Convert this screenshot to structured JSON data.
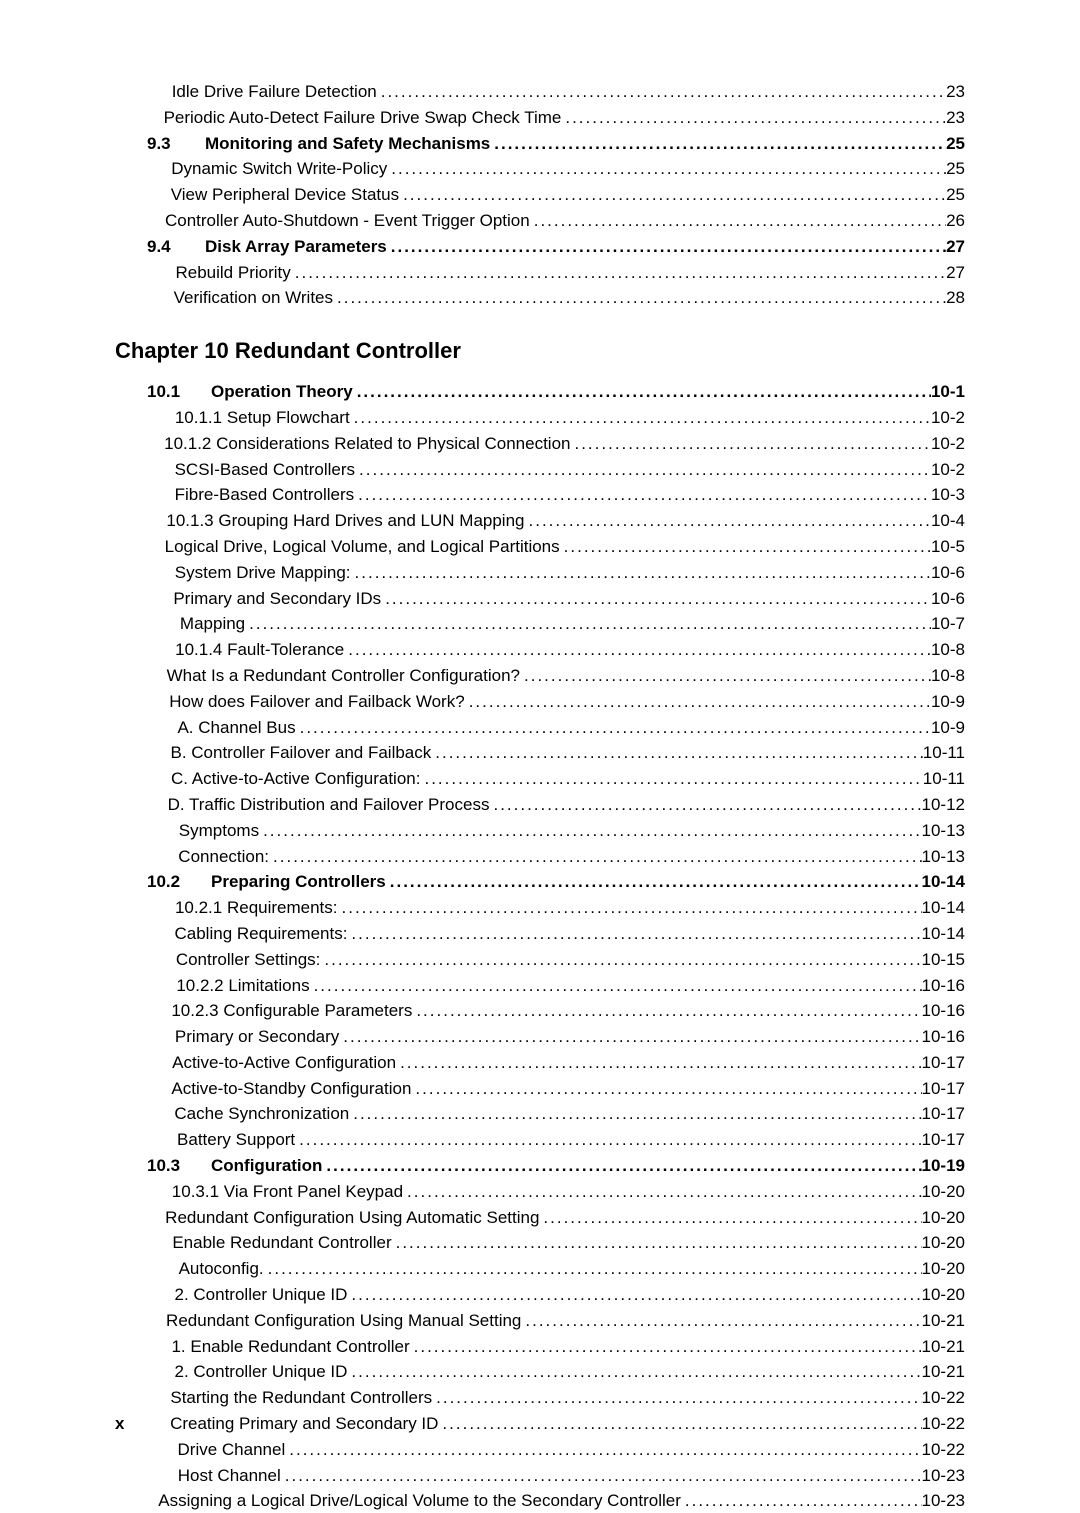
{
  "top_section": [
    {
      "num": "",
      "label": "Idle Drive Failure Detection",
      "page": "23",
      "bold": false,
      "indent": 1
    },
    {
      "num": "",
      "label": "Periodic Auto-Detect Failure Drive Swap Check Time",
      "page": "23",
      "bold": false,
      "indent": 1
    },
    {
      "num": "9.3",
      "label": "Monitoring and Safety Mechanisms",
      "page": "25",
      "bold": true,
      "indent": 0
    },
    {
      "num": "",
      "label": "Dynamic Switch Write-Policy",
      "page": "25",
      "bold": false,
      "indent": 1
    },
    {
      "num": "",
      "label": "View Peripheral Device Status",
      "page": "25",
      "bold": false,
      "indent": 1
    },
    {
      "num": "",
      "label": "Controller Auto-Shutdown - Event Trigger Option",
      "page": "26",
      "bold": false,
      "indent": 1
    },
    {
      "num": "9.4",
      "label": "Disk Array Parameters",
      "page": "27",
      "bold": true,
      "indent": 0
    },
    {
      "num": "",
      "label": "Rebuild Priority",
      "page": "27",
      "bold": false,
      "indent": 1
    },
    {
      "num": "",
      "label": "Verification on Writes",
      "page": "28",
      "bold": false,
      "indent": 1
    }
  ],
  "chapter_heading": "Chapter 10  Redundant Controller",
  "ch10_section": [
    {
      "num": "10.1",
      "label": "Operation Theory",
      "page": "10-1",
      "bold": true,
      "indent": 0
    },
    {
      "num": "",
      "label": "10.1.1  Setup Flowchart",
      "page": "10-2",
      "bold": false,
      "indent": 1
    },
    {
      "num": "",
      "label": "10.1.2  Considerations Related to Physical Connection",
      "page": "10-2",
      "bold": false,
      "indent": 1
    },
    {
      "num": "",
      "label": "SCSI-Based Controllers",
      "page": "10-2",
      "bold": false,
      "indent": 1
    },
    {
      "num": "",
      "label": "Fibre-Based Controllers",
      "page": "10-3",
      "bold": false,
      "indent": 1
    },
    {
      "num": "",
      "label": "10.1.3  Grouping Hard Drives and LUN Mapping",
      "page": "10-4",
      "bold": false,
      "indent": 1
    },
    {
      "num": "",
      "label": "Logical Drive, Logical Volume, and Logical Partitions",
      "page": "10-5",
      "bold": false,
      "indent": 1
    },
    {
      "num": "",
      "label": "System Drive Mapping:",
      "page": "10-6",
      "bold": false,
      "indent": 1
    },
    {
      "num": "",
      "label": "Primary and Secondary IDs",
      "page": "10-6",
      "bold": false,
      "indent": 1
    },
    {
      "num": "",
      "label": "Mapping",
      "page": "10-7",
      "bold": false,
      "indent": 1
    },
    {
      "num": "",
      "label": "10.1.4  Fault-Tolerance",
      "page": "10-8",
      "bold": false,
      "indent": 1
    },
    {
      "num": "",
      "label": "What Is a Redundant Controller Configuration?",
      "page": "10-8",
      "bold": false,
      "indent": 1
    },
    {
      "num": "",
      "label": "How does Failover and Failback Work?",
      "page": "10-9",
      "bold": false,
      "indent": 1
    },
    {
      "num": "",
      "label": "A.  Channel Bus",
      "page": "10-9",
      "bold": false,
      "indent": 1
    },
    {
      "num": "",
      "label": "B.  Controller Failover and Failback",
      "page": "10-11",
      "bold": false,
      "indent": 1
    },
    {
      "num": "",
      "label": "C.  Active-to-Active Configuration:",
      "page": "10-11",
      "bold": false,
      "indent": 1
    },
    {
      "num": "",
      "label": "D.  Traffic Distribution and Failover Process",
      "page": "10-12",
      "bold": false,
      "indent": 1
    },
    {
      "num": "",
      "label": "Symptoms",
      "page": "10-13",
      "bold": false,
      "indent": 1
    },
    {
      "num": "",
      "label": "Connection:",
      "page": "10-13",
      "bold": false,
      "indent": 1
    },
    {
      "num": "10.2",
      "label": "Preparing Controllers",
      "page": "10-14",
      "bold": true,
      "indent": 0
    },
    {
      "num": "",
      "label": "10.2.1  Requirements:",
      "page": "10-14",
      "bold": false,
      "indent": 1
    },
    {
      "num": "",
      "label": "Cabling Requirements:",
      "page": "10-14",
      "bold": false,
      "indent": 1
    },
    {
      "num": "",
      "label": "Controller Settings:",
      "page": "10-15",
      "bold": false,
      "indent": 1
    },
    {
      "num": "",
      "label": "10.2.2  Limitations",
      "page": "10-16",
      "bold": false,
      "indent": 1
    },
    {
      "num": "",
      "label": "10.2.3  Configurable Parameters",
      "page": "10-16",
      "bold": false,
      "indent": 1
    },
    {
      "num": "",
      "label": "Primary or Secondary",
      "page": "10-16",
      "bold": false,
      "indent": 1
    },
    {
      "num": "",
      "label": "Active-to-Active Configuration",
      "page": "10-17",
      "bold": false,
      "indent": 1
    },
    {
      "num": "",
      "label": "Active-to-Standby Configuration",
      "page": "10-17",
      "bold": false,
      "indent": 1
    },
    {
      "num": "",
      "label": "Cache Synchronization",
      "page": "10-17",
      "bold": false,
      "indent": 1
    },
    {
      "num": "",
      "label": "Battery Support",
      "page": "10-17",
      "bold": false,
      "indent": 1
    },
    {
      "num": "10.3",
      "label": "Configuration",
      "page": "10-19",
      "bold": true,
      "indent": 0
    },
    {
      "num": "",
      "label": "10.3.1  Via Front Panel Keypad",
      "page": "10-20",
      "bold": false,
      "indent": 1
    },
    {
      "num": "",
      "label": "Redundant Configuration Using Automatic Setting",
      "page": "10-20",
      "bold": false,
      "indent": 1
    },
    {
      "num": "",
      "label": "Enable Redundant Controller",
      "page": "10-20",
      "bold": false,
      "indent": 1
    },
    {
      "num": "",
      "label": "Autoconfig.",
      "page": "10-20",
      "bold": false,
      "indent": 1
    },
    {
      "num": "",
      "label": "2. Controller Unique ID",
      "page": "10-20",
      "bold": false,
      "indent": 1
    },
    {
      "num": "",
      "label": "Redundant Configuration Using Manual Setting",
      "page": "10-21",
      "bold": false,
      "indent": 1
    },
    {
      "num": "",
      "label": "1. Enable Redundant Controller",
      "page": "10-21",
      "bold": false,
      "indent": 1
    },
    {
      "num": "",
      "label": "2. Controller Unique ID",
      "page": "10-21",
      "bold": false,
      "indent": 1
    },
    {
      "num": "",
      "label": "Starting the Redundant Controllers",
      "page": "10-22",
      "bold": false,
      "indent": 1
    },
    {
      "num": "",
      "label": "Creating Primary and Secondary ID",
      "page": "10-22",
      "bold": false,
      "indent": 1
    },
    {
      "num": "",
      "label": "Drive Channel",
      "page": "10-22",
      "bold": false,
      "indent": 1
    },
    {
      "num": "",
      "label": "Host Channel",
      "page": "10-23",
      "bold": false,
      "indent": 1
    },
    {
      "num": "",
      "label": "Assigning a Logical Drive/Logical Volume to the Secondary Controller",
      "page": "10-23",
      "bold": false,
      "indent": 1
    }
  ],
  "footer_page": "x"
}
